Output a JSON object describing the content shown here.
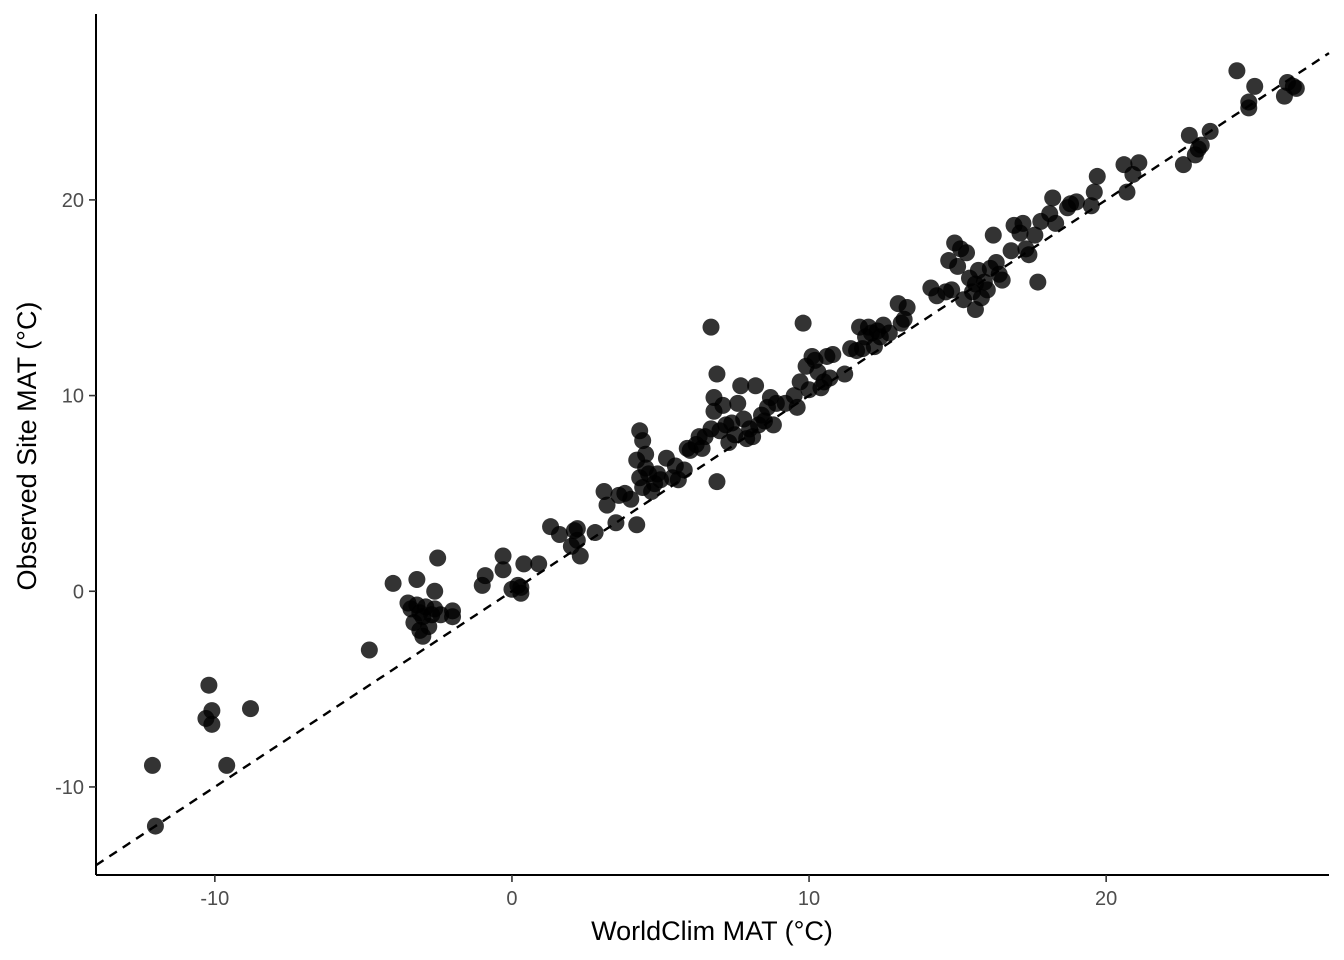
{
  "chart_data": {
    "type": "scatter",
    "xlabel": "WorldClim MAT (°C)",
    "ylabel": "Observed Site MAT (°C)",
    "xlim": [
      -14,
      27.5
    ],
    "ylim": [
      -14.5,
      29.5
    ],
    "x_ticks": [
      {
        "value": -10,
        "label": "-10"
      },
      {
        "value": 0,
        "label": "0"
      },
      {
        "value": 10,
        "label": "10"
      },
      {
        "value": 20,
        "label": "20"
      }
    ],
    "y_ticks": [
      {
        "value": -10,
        "label": "-10"
      },
      {
        "value": 0,
        "label": "0"
      },
      {
        "value": 10,
        "label": "10"
      },
      {
        "value": 20,
        "label": "20"
      }
    ],
    "grid": false,
    "legend": "none",
    "reference_line": {
      "type": "identity",
      "slope": 1,
      "intercept": 0,
      "style": "dashed"
    },
    "point_color": "#000000",
    "point_opacity": 0.8,
    "points": [
      [
        -12.0,
        -12.0
      ],
      [
        -12.1,
        -8.9
      ],
      [
        -10.2,
        -4.8
      ],
      [
        -10.3,
        -6.5
      ],
      [
        -10.1,
        -6.1
      ],
      [
        -10.1,
        -6.8
      ],
      [
        -9.6,
        -8.9
      ],
      [
        -8.8,
        -6.0
      ],
      [
        -4.8,
        -3.0
      ],
      [
        -4.0,
        0.4
      ],
      [
        -3.5,
        -0.6
      ],
      [
        -3.4,
        -0.9
      ],
      [
        -3.3,
        -1.6
      ],
      [
        -3.2,
        0.6
      ],
      [
        -3.2,
        -0.7
      ],
      [
        -3.1,
        -1.1
      ],
      [
        -3.1,
        -2.0
      ],
      [
        -3.0,
        -2.3
      ],
      [
        -3.0,
        -1.3
      ],
      [
        -2.9,
        -0.8
      ],
      [
        -2.8,
        -1.8
      ],
      [
        -2.7,
        -1.2
      ],
      [
        -2.6,
        -0.9
      ],
      [
        -2.6,
        0.0
      ],
      [
        -2.5,
        1.7
      ],
      [
        -2.4,
        -1.2
      ],
      [
        -2.0,
        -1.0
      ],
      [
        -2.0,
        -1.3
      ],
      [
        -1.0,
        0.3
      ],
      [
        -0.9,
        0.8
      ],
      [
        -0.3,
        1.8
      ],
      [
        -0.3,
        1.1
      ],
      [
        0.0,
        0.1
      ],
      [
        0.2,
        0.3
      ],
      [
        0.3,
        0.2
      ],
      [
        0.3,
        -0.1
      ],
      [
        0.4,
        1.4
      ],
      [
        0.9,
        1.4
      ],
      [
        1.3,
        3.3
      ],
      [
        1.6,
        2.9
      ],
      [
        2.0,
        2.3
      ],
      [
        2.1,
        3.1
      ],
      [
        2.2,
        3.2
      ],
      [
        2.2,
        2.6
      ],
      [
        2.3,
        1.8
      ],
      [
        2.8,
        3.0
      ],
      [
        3.1,
        5.1
      ],
      [
        3.2,
        4.4
      ],
      [
        3.5,
        3.5
      ],
      [
        3.6,
        4.9
      ],
      [
        3.8,
        5.0
      ],
      [
        4.0,
        4.7
      ],
      [
        4.2,
        3.4
      ],
      [
        4.2,
        6.7
      ],
      [
        4.3,
        8.2
      ],
      [
        4.3,
        5.8
      ],
      [
        4.4,
        7.7
      ],
      [
        4.4,
        5.3
      ],
      [
        4.5,
        6.3
      ],
      [
        4.5,
        7.0
      ],
      [
        4.6,
        6.0
      ],
      [
        4.7,
        5.1
      ],
      [
        4.8,
        5.5
      ],
      [
        4.9,
        6.0
      ],
      [
        5.0,
        5.7
      ],
      [
        5.2,
        6.8
      ],
      [
        5.4,
        5.8
      ],
      [
        5.5,
        6.4
      ],
      [
        5.6,
        5.7
      ],
      [
        5.8,
        6.2
      ],
      [
        5.9,
        7.3
      ],
      [
        6.0,
        7.2
      ],
      [
        6.2,
        7.5
      ],
      [
        6.3,
        7.9
      ],
      [
        6.4,
        7.3
      ],
      [
        6.5,
        7.9
      ],
      [
        6.7,
        8.3
      ],
      [
        6.7,
        13.5
      ],
      [
        6.8,
        9.2
      ],
      [
        6.8,
        9.9
      ],
      [
        6.9,
        11.1
      ],
      [
        6.9,
        5.6
      ],
      [
        7.0,
        8.2
      ],
      [
        7.1,
        9.5
      ],
      [
        7.2,
        8.5
      ],
      [
        7.3,
        7.6
      ],
      [
        7.4,
        8.6
      ],
      [
        7.5,
        8.0
      ],
      [
        7.6,
        9.6
      ],
      [
        7.7,
        10.5
      ],
      [
        7.8,
        8.8
      ],
      [
        7.9,
        7.8
      ],
      [
        8.0,
        8.3
      ],
      [
        8.1,
        7.9
      ],
      [
        8.2,
        10.5
      ],
      [
        8.3,
        8.5
      ],
      [
        8.4,
        9.0
      ],
      [
        8.5,
        8.7
      ],
      [
        8.6,
        9.4
      ],
      [
        8.7,
        9.9
      ],
      [
        8.8,
        8.5
      ],
      [
        8.9,
        9.6
      ],
      [
        9.2,
        9.6
      ],
      [
        9.5,
        10.0
      ],
      [
        9.6,
        9.4
      ],
      [
        9.7,
        10.7
      ],
      [
        9.8,
        13.7
      ],
      [
        9.9,
        11.5
      ],
      [
        10.0,
        10.3
      ],
      [
        10.1,
        12.0
      ],
      [
        10.2,
        11.8
      ],
      [
        10.3,
        11.2
      ],
      [
        10.4,
        10.4
      ],
      [
        10.5,
        10.7
      ],
      [
        10.6,
        12.0
      ],
      [
        10.7,
        10.9
      ],
      [
        10.8,
        12.1
      ],
      [
        11.2,
        11.1
      ],
      [
        11.4,
        12.4
      ],
      [
        11.6,
        12.3
      ],
      [
        11.7,
        13.5
      ],
      [
        11.8,
        12.4
      ],
      [
        11.9,
        13.0
      ],
      [
        12.0,
        13.5
      ],
      [
        12.1,
        13.2
      ],
      [
        12.2,
        12.5
      ],
      [
        12.3,
        13.3
      ],
      [
        12.4,
        13.0
      ],
      [
        12.5,
        13.6
      ],
      [
        12.7,
        13.2
      ],
      [
        13.0,
        14.7
      ],
      [
        13.1,
        13.7
      ],
      [
        13.2,
        13.9
      ],
      [
        13.3,
        14.5
      ],
      [
        14.1,
        15.5
      ],
      [
        14.3,
        15.1
      ],
      [
        14.6,
        15.3
      ],
      [
        14.7,
        16.9
      ],
      [
        14.8,
        15.4
      ],
      [
        14.9,
        17.8
      ],
      [
        15.0,
        16.6
      ],
      [
        15.1,
        17.5
      ],
      [
        15.2,
        14.9
      ],
      [
        15.3,
        17.3
      ],
      [
        15.4,
        16.0
      ],
      [
        15.5,
        15.3
      ],
      [
        15.6,
        14.4
      ],
      [
        15.6,
        15.7
      ],
      [
        15.7,
        16.4
      ],
      [
        15.8,
        15.0
      ],
      [
        15.9,
        15.8
      ],
      [
        16.0,
        15.4
      ],
      [
        16.1,
        16.5
      ],
      [
        16.2,
        18.2
      ],
      [
        16.3,
        16.8
      ],
      [
        16.4,
        16.2
      ],
      [
        16.5,
        15.9
      ],
      [
        16.8,
        17.4
      ],
      [
        16.9,
        18.7
      ],
      [
        17.1,
        18.3
      ],
      [
        17.2,
        18.8
      ],
      [
        17.3,
        17.5
      ],
      [
        17.4,
        17.2
      ],
      [
        17.6,
        18.2
      ],
      [
        17.7,
        15.8
      ],
      [
        17.8,
        18.9
      ],
      [
        18.1,
        19.3
      ],
      [
        18.2,
        20.1
      ],
      [
        18.3,
        18.8
      ],
      [
        18.7,
        19.6
      ],
      [
        18.8,
        19.8
      ],
      [
        19.0,
        19.9
      ],
      [
        19.5,
        19.7
      ],
      [
        19.6,
        20.4
      ],
      [
        19.7,
        21.2
      ],
      [
        20.6,
        21.8
      ],
      [
        20.7,
        20.4
      ],
      [
        20.9,
        21.3
      ],
      [
        21.1,
        21.9
      ],
      [
        22.6,
        21.8
      ],
      [
        22.8,
        23.3
      ],
      [
        23.0,
        22.3
      ],
      [
        23.1,
        22.6
      ],
      [
        23.2,
        22.8
      ],
      [
        23.5,
        23.5
      ],
      [
        24.4,
        26.6
      ],
      [
        24.8,
        24.7
      ],
      [
        24.8,
        25.0
      ],
      [
        25.0,
        25.8
      ],
      [
        26.0,
        25.3
      ],
      [
        26.1,
        26.0
      ],
      [
        26.3,
        25.8
      ],
      [
        26.4,
        25.7
      ]
    ]
  }
}
